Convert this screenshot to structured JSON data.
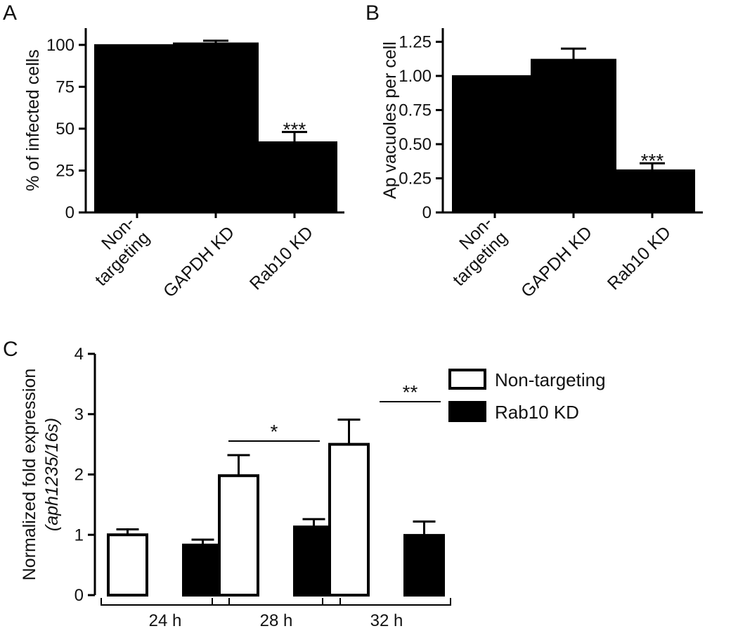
{
  "chart_data": [
    {
      "panel": "A",
      "type": "bar",
      "categories": [
        [
          "Non-",
          "targeting"
        ],
        [
          "GAPDH KD"
        ],
        [
          "Rab10 KD"
        ]
      ],
      "values": [
        100,
        101,
        42
      ],
      "errors": [
        0,
        1.5,
        6
      ],
      "significance": [
        "",
        "",
        "***"
      ],
      "ylabel": "% of infected cells",
      "yticks": [
        "0",
        "25",
        "50",
        "75",
        "100"
      ],
      "ylim": [
        0,
        110
      ],
      "bar_color": "#000000"
    },
    {
      "panel": "B",
      "type": "bar",
      "categories": [
        [
          "Non-",
          "targeting"
        ],
        [
          "GAPDH KD"
        ],
        [
          "Rab10 KD"
        ]
      ],
      "values": [
        1.0,
        1.12,
        0.31
      ],
      "errors": [
        0,
        0.08,
        0.05
      ],
      "significance": [
        "",
        "",
        "***"
      ],
      "ylabel": "Ap vacuoles per cell",
      "yticks": [
        "0",
        "0.25",
        "0.50",
        "0.75",
        "1.00",
        "1.25"
      ],
      "ylim": [
        0,
        1.35
      ],
      "bar_color": "#000000"
    },
    {
      "panel": "C",
      "type": "bar",
      "categories": [
        "24 h",
        "28 h",
        "32 h"
      ],
      "series": [
        {
          "name": "Non-targeting",
          "values": [
            1.0,
            1.98,
            2.5
          ],
          "errors": [
            0.09,
            0.34,
            0.41
          ],
          "fill": "#ffffff"
        },
        {
          "name": "Rab10 KD",
          "values": [
            0.83,
            1.13,
            0.99
          ],
          "errors": [
            0.09,
            0.13,
            0.23
          ],
          "fill": "#000000"
        }
      ],
      "significance": [
        "",
        "*",
        "**"
      ],
      "ylabel_line1": "Normalized fold expression",
      "ylabel_line2": "(aph1235/16s)",
      "yticks": [
        "0",
        "1",
        "2",
        "3",
        "4"
      ],
      "ylim": [
        0,
        4
      ],
      "legend_position": "top-right"
    }
  ]
}
